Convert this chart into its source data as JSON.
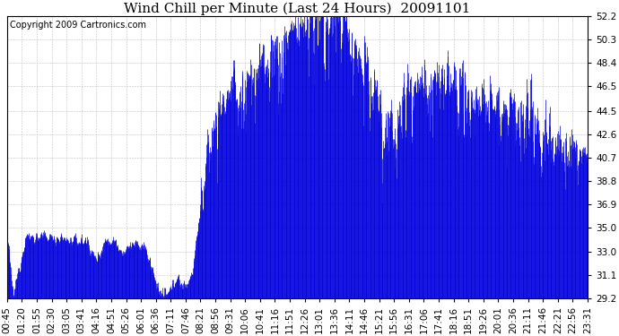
{
  "title": "Wind Chill per Minute (Last 24 Hours)  20091101",
  "copyright": "Copyright 2009 Cartronics.com",
  "line_color": "#0000dd",
  "background_color": "#ffffff",
  "grid_color": "#bbbbbb",
  "ylim": [
    29.2,
    52.2
  ],
  "yticks": [
    29.2,
    31.1,
    33.0,
    35.0,
    36.9,
    38.8,
    40.7,
    42.6,
    44.5,
    46.5,
    48.4,
    50.3,
    52.2
  ],
  "xtick_labels": [
    "00:45",
    "01:20",
    "01:55",
    "02:30",
    "03:05",
    "03:41",
    "04:16",
    "04:51",
    "05:26",
    "06:01",
    "06:36",
    "07:11",
    "07:46",
    "08:21",
    "08:56",
    "09:31",
    "10:06",
    "10:41",
    "11:16",
    "11:51",
    "12:26",
    "13:01",
    "13:36",
    "14:11",
    "14:46",
    "15:21",
    "15:56",
    "16:31",
    "17:06",
    "17:41",
    "18:16",
    "18:51",
    "19:26",
    "20:01",
    "20:36",
    "21:11",
    "21:46",
    "22:21",
    "22:56",
    "23:31"
  ],
  "title_fontsize": 11,
  "copyright_fontsize": 7,
  "tick_fontsize": 7.5
}
